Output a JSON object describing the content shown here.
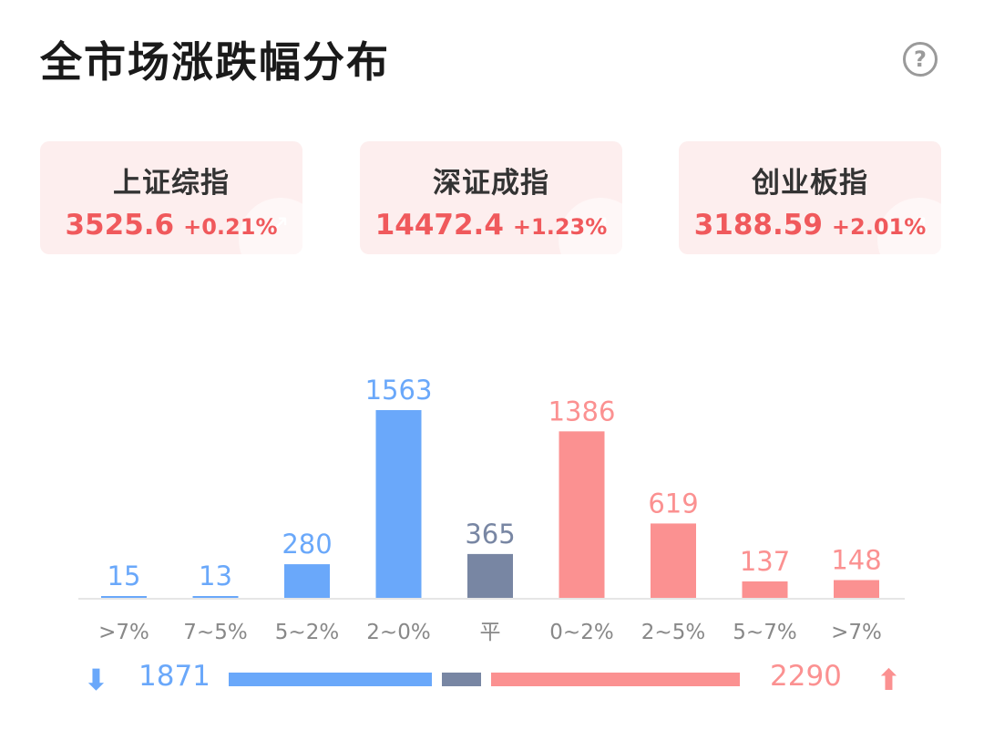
{
  "header": {
    "title": "全市场涨跌幅分布",
    "help_icon": "?"
  },
  "indices": [
    {
      "name": "上证综指",
      "price": "3525.6",
      "change": "+0.21%"
    },
    {
      "name": "深证成指",
      "price": "14472.4",
      "change": "+1.23%"
    },
    {
      "name": "创业板指",
      "price": "3188.59",
      "change": "+2.01%"
    }
  ],
  "colors": {
    "down": "#6aa8fa",
    "flat": "#7886a3",
    "up": "#fb9191",
    "up_text": "#f0595c",
    "axis_label": "#888888"
  },
  "chart_data": {
    "type": "bar",
    "categories": [
      ">7%",
      "7~5%",
      "5~2%",
      "2~0%",
      "平",
      "0~2%",
      "2~5%",
      "5~7%",
      ">7%"
    ],
    "values": [
      15,
      13,
      280,
      1563,
      365,
      1386,
      619,
      137,
      148
    ],
    "groups": [
      "down",
      "down",
      "down",
      "down",
      "flat",
      "up",
      "up",
      "up",
      "up"
    ],
    "title": "",
    "xlabel": "",
    "ylabel": "",
    "ylim": [
      0,
      1563
    ],
    "grid": false
  },
  "totals": {
    "down_count": "1871",
    "up_count": "2290",
    "flat_count": 365,
    "down_arrow_icon": "⬇",
    "up_arrow_icon": "⬆"
  }
}
